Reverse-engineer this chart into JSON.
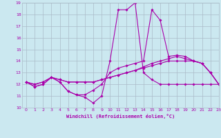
{
  "title": "",
  "xlabel": "Windchill (Refroidissement éolien,°C)",
  "ylabel": "",
  "xlim": [
    -0.5,
    23
  ],
  "ylim": [
    10,
    19
  ],
  "xticks": [
    0,
    1,
    2,
    3,
    4,
    5,
    6,
    7,
    8,
    9,
    10,
    11,
    12,
    13,
    14,
    15,
    16,
    17,
    18,
    19,
    20,
    21,
    22,
    23
  ],
  "yticks": [
    10,
    11,
    12,
    13,
    14,
    15,
    16,
    17,
    18,
    19
  ],
  "bg_color": "#cbe8f0",
  "line_color": "#aa00aa",
  "grid_color": "#aabbc8",
  "curves": [
    [
      12.2,
      11.8,
      12.0,
      12.6,
      12.2,
      11.4,
      11.1,
      10.9,
      10.4,
      11.0,
      14.0,
      18.4,
      18.4,
      19.0,
      13.0,
      12.4,
      12.0,
      12.0,
      12.0,
      12.0,
      12.0,
      12.0,
      12.0,
      12.0
    ],
    [
      12.2,
      11.8,
      12.0,
      12.6,
      12.2,
      11.4,
      11.1,
      11.1,
      11.5,
      12.0,
      13.0,
      13.4,
      13.6,
      13.8,
      14.0,
      18.4,
      17.5,
      14.4,
      14.5,
      14.4,
      14.0,
      13.8,
      13.0,
      12.0
    ],
    [
      12.2,
      12.0,
      12.2,
      12.6,
      12.4,
      12.2,
      12.2,
      12.2,
      12.2,
      12.4,
      12.6,
      12.8,
      13.0,
      13.2,
      13.5,
      13.8,
      14.0,
      14.2,
      14.4,
      14.2,
      14.0,
      13.8,
      13.0,
      12.0
    ],
    [
      12.2,
      12.0,
      12.2,
      12.6,
      12.4,
      12.2,
      12.2,
      12.2,
      12.2,
      12.4,
      12.6,
      12.8,
      13.0,
      13.2,
      13.4,
      13.6,
      13.8,
      14.0,
      14.0,
      14.0,
      14.0,
      13.8,
      13.0,
      12.0
    ]
  ]
}
